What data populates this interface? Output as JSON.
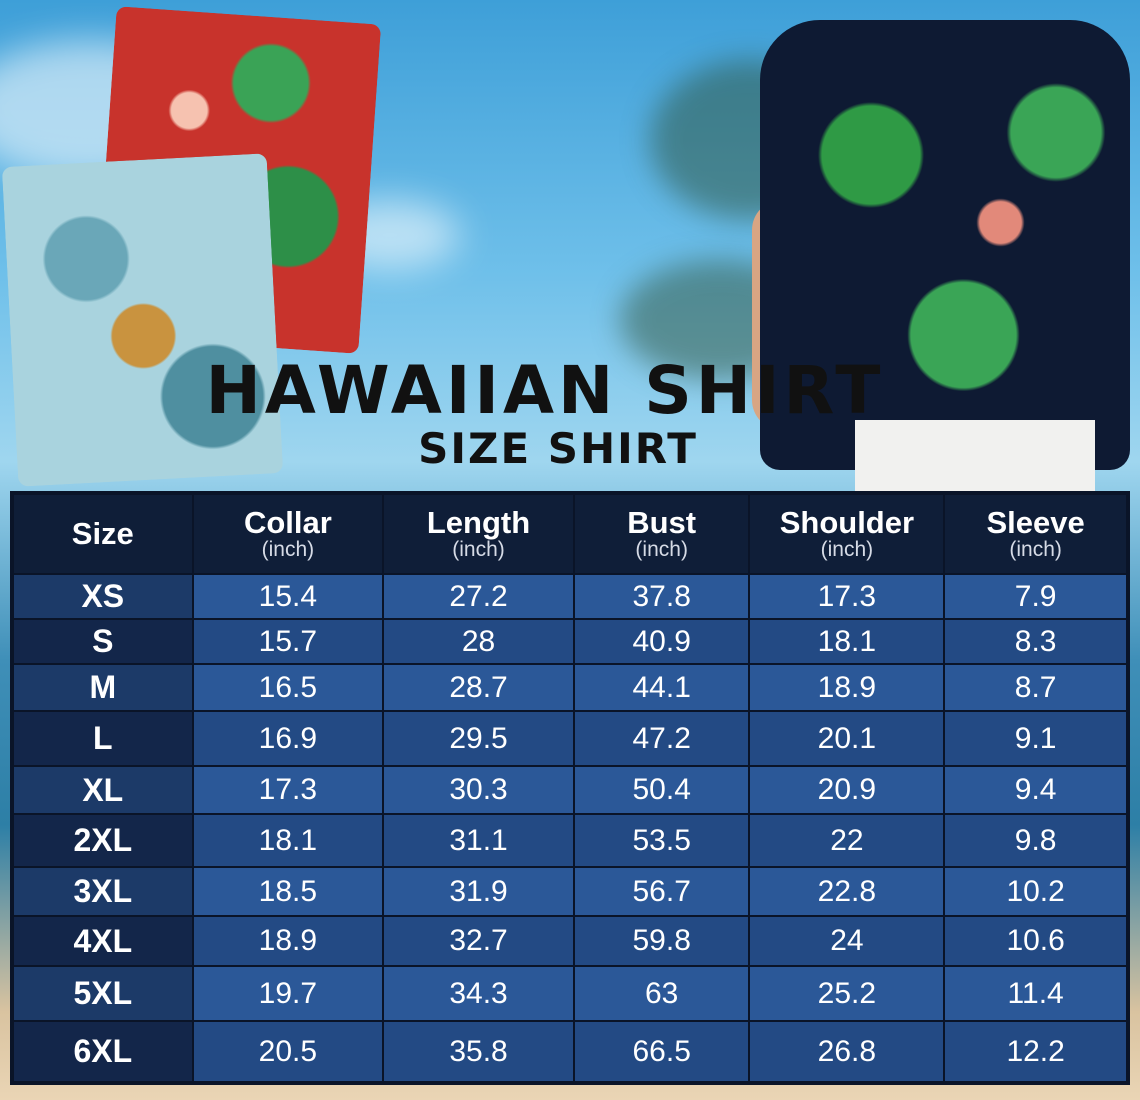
{
  "title": "HAWAIIAN SHIRT",
  "subtitle": "SIZE SHIRT",
  "colors": {
    "header_bg": "#0f1e38",
    "row_light": "#2b5898",
    "row_dark": "#234a84",
    "size_col": "#13264a"
  },
  "table": {
    "headers": [
      {
        "label": "Size",
        "unit": ""
      },
      {
        "label": "Collar",
        "unit": "(inch)"
      },
      {
        "label": "Length",
        "unit": "(inch)"
      },
      {
        "label": "Bust",
        "unit": "(inch)"
      },
      {
        "label": "Shoulder",
        "unit": "(inch)"
      },
      {
        "label": "Sleeve",
        "unit": "(inch)"
      }
    ],
    "rows": [
      [
        "XS",
        "15.4",
        "27.2",
        "37.8",
        "17.3",
        "7.9"
      ],
      [
        "S",
        "15.7",
        "28",
        "40.9",
        "18.1",
        "8.3"
      ],
      [
        "M",
        "16.5",
        "28.7",
        "44.1",
        "18.9",
        "8.7"
      ],
      [
        "L",
        "16.9",
        "29.5",
        "47.2",
        "20.1",
        "9.1"
      ],
      [
        "XL",
        "17.3",
        "30.3",
        "50.4",
        "20.9",
        "9.4"
      ],
      [
        "2XL",
        "18.1",
        "31.1",
        "53.5",
        "22",
        "9.8"
      ],
      [
        "3XL",
        "18.5",
        "31.9",
        "56.7",
        "22.8",
        "10.2"
      ],
      [
        "4XL",
        "18.9",
        "32.7",
        "59.8",
        "24",
        "10.6"
      ],
      [
        "5XL",
        "19.7",
        "34.3",
        "63",
        "25.2",
        "11.4"
      ],
      [
        "6XL",
        "20.5",
        "35.8",
        "66.5",
        "26.8",
        "12.2"
      ]
    ]
  }
}
